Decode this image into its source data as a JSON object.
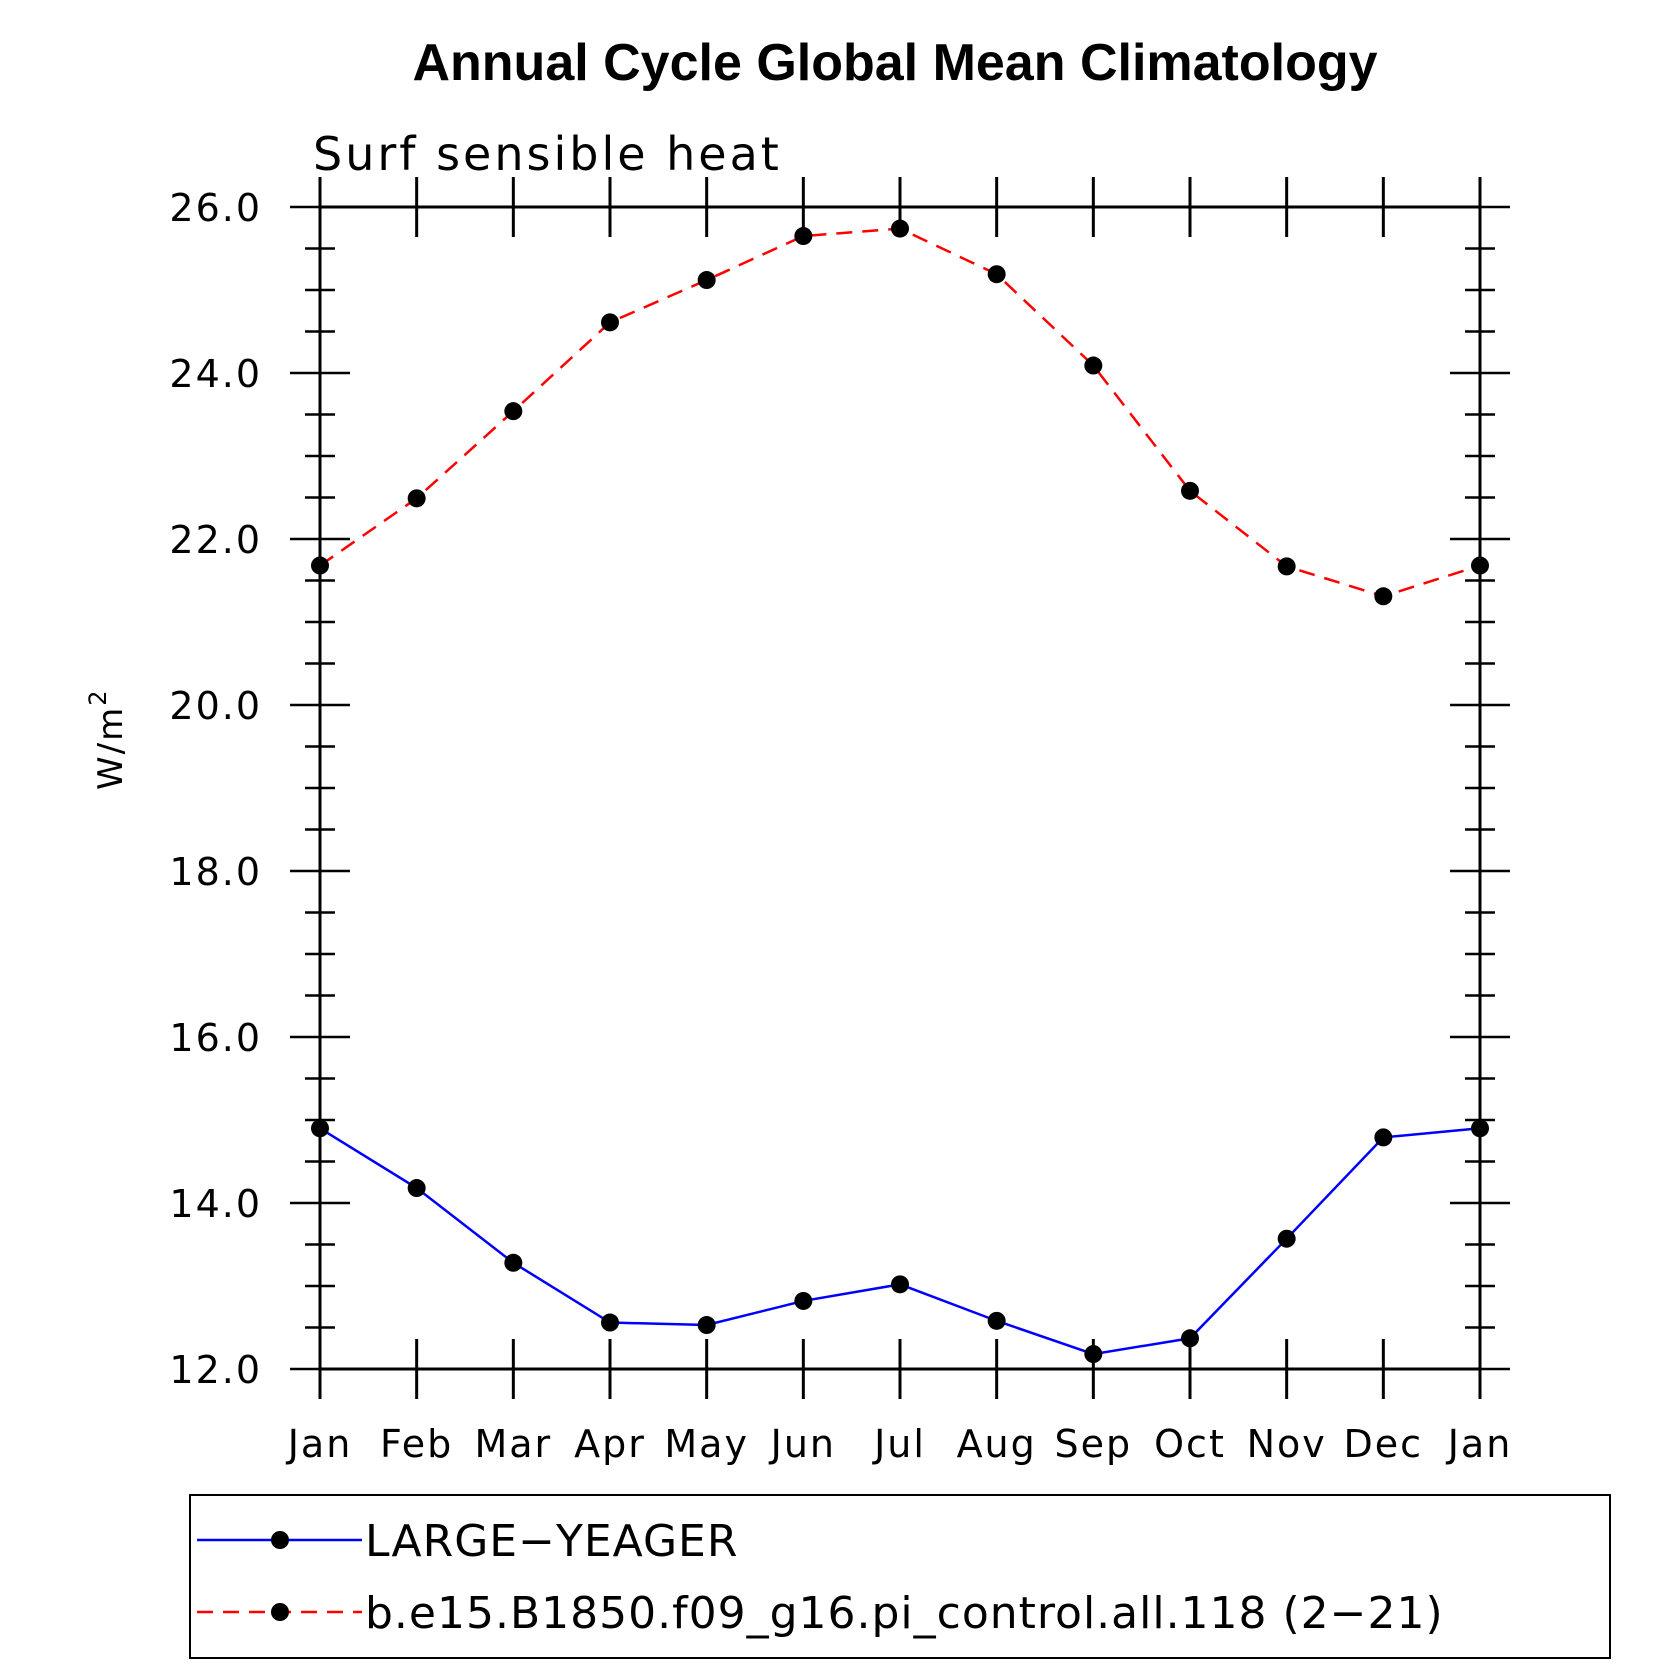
{
  "chart_data": {
    "type": "line",
    "title": "Annual Cycle Global Mean Climatology",
    "subtitle": "Surf sensible heat",
    "ylabel": "W/m",
    "ylabel_superscript": "2",
    "xlabel": "",
    "categories": [
      "Jan",
      "Feb",
      "Mar",
      "Apr",
      "May",
      "Jun",
      "Jul",
      "Aug",
      "Sep",
      "Oct",
      "Nov",
      "Dec",
      "Jan"
    ],
    "ylim": [
      12.0,
      26.0
    ],
    "yticks": [
      "12.0",
      "14.0",
      "16.0",
      "18.0",
      "20.0",
      "22.0",
      "24.0",
      "26.0"
    ],
    "grid": false,
    "legend_position": "bottom",
    "series": [
      {
        "name": "LARGE−YEAGER",
        "color": "#0000ff",
        "dash": "solid",
        "marker": "filled-circle",
        "values": [
          14.9,
          14.18,
          13.28,
          12.56,
          12.53,
          12.82,
          13.02,
          12.58,
          12.18,
          12.37,
          13.57,
          14.79,
          14.9
        ]
      },
      {
        "name": "b.e15.B1850.f09_g16.pi_control.all.118 (2−21)",
        "color": "#ff0000",
        "dash": "dashed",
        "marker": "filled-circle",
        "values": [
          21.68,
          22.49,
          23.54,
          24.61,
          25.12,
          25.65,
          25.74,
          25.19,
          24.09,
          22.58,
          21.67,
          21.31,
          21.68
        ]
      }
    ]
  }
}
